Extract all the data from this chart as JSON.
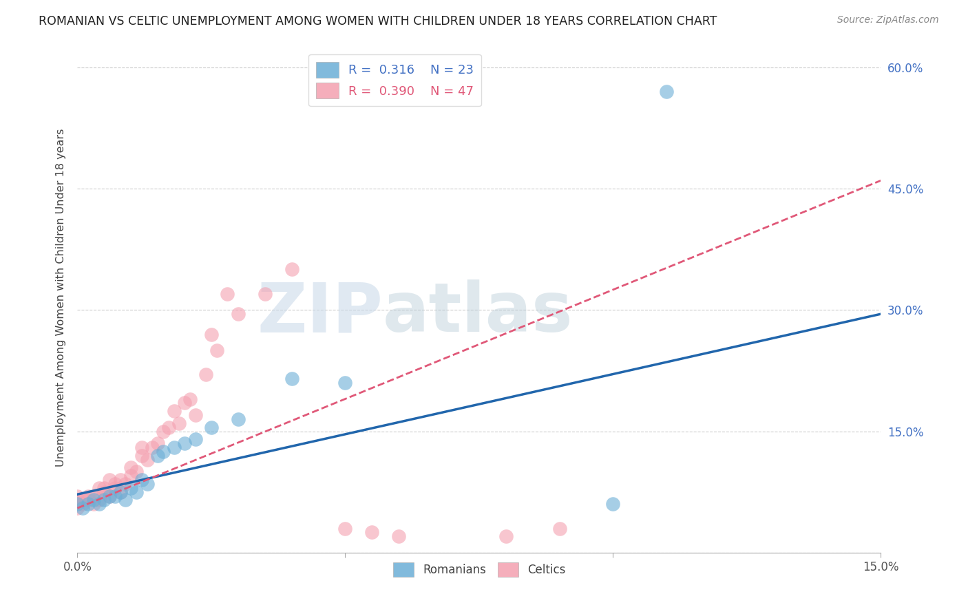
{
  "title": "ROMANIAN VS CELTIC UNEMPLOYMENT AMONG WOMEN WITH CHILDREN UNDER 18 YEARS CORRELATION CHART",
  "source": "Source: ZipAtlas.com",
  "ylabel": "Unemployment Among Women with Children Under 18 years",
  "xlim": [
    0.0,
    0.15
  ],
  "ylim": [
    0.0,
    0.63
  ],
  "yticks": [
    0.0,
    0.15,
    0.3,
    0.45,
    0.6
  ],
  "ytick_labels": [
    "",
    "15.0%",
    "30.0%",
    "45.0%",
    "60.0%"
  ],
  "xticks": [
    0.0,
    0.05,
    0.1,
    0.15
  ],
  "xtick_labels": [
    "0.0%",
    "",
    "",
    "15.0%"
  ],
  "legend_R_romanian": "0.316",
  "legend_N_romanian": "23",
  "legend_R_celtic": "0.390",
  "legend_N_celtic": "47",
  "romanian_color": "#6baed6",
  "celtic_color": "#f4a0b0",
  "trendline_romanian_color": "#2166ac",
  "trendline_celtic_color": "#e05878",
  "watermark_zip": "ZIP",
  "watermark_atlas": "atlas",
  "rom_trendline_x": [
    0.0,
    0.15
  ],
  "rom_trendline_y": [
    0.072,
    0.295
  ],
  "celt_trendline_x": [
    0.0,
    0.15
  ],
  "celt_trendline_y": [
    0.055,
    0.46
  ],
  "romanians_x": [
    0.0,
    0.001,
    0.002,
    0.003,
    0.004,
    0.005,
    0.006,
    0.007,
    0.008,
    0.009,
    0.01,
    0.011,
    0.012,
    0.013,
    0.015,
    0.016,
    0.018,
    0.02,
    0.022,
    0.025,
    0.03,
    0.04,
    0.05,
    0.1,
    0.11
  ],
  "romanians_y": [
    0.06,
    0.055,
    0.06,
    0.065,
    0.06,
    0.065,
    0.07,
    0.07,
    0.075,
    0.065,
    0.08,
    0.075,
    0.09,
    0.085,
    0.12,
    0.125,
    0.13,
    0.135,
    0.14,
    0.155,
    0.165,
    0.215,
    0.21,
    0.06,
    0.57
  ],
  "celtics_x": [
    0.0,
    0.0,
    0.0,
    0.001,
    0.001,
    0.002,
    0.002,
    0.003,
    0.003,
    0.004,
    0.004,
    0.005,
    0.005,
    0.006,
    0.006,
    0.007,
    0.007,
    0.008,
    0.008,
    0.009,
    0.01,
    0.01,
    0.011,
    0.012,
    0.012,
    0.013,
    0.014,
    0.015,
    0.016,
    0.017,
    0.018,
    0.019,
    0.02,
    0.021,
    0.022,
    0.024,
    0.025,
    0.026,
    0.028,
    0.03,
    0.035,
    0.04,
    0.05,
    0.055,
    0.06,
    0.08,
    0.09
  ],
  "celtics_y": [
    0.055,
    0.065,
    0.07,
    0.06,
    0.065,
    0.065,
    0.07,
    0.06,
    0.07,
    0.065,
    0.08,
    0.075,
    0.08,
    0.07,
    0.09,
    0.08,
    0.085,
    0.075,
    0.09,
    0.085,
    0.095,
    0.105,
    0.1,
    0.12,
    0.13,
    0.115,
    0.13,
    0.135,
    0.15,
    0.155,
    0.175,
    0.16,
    0.185,
    0.19,
    0.17,
    0.22,
    0.27,
    0.25,
    0.32,
    0.295,
    0.32,
    0.35,
    0.03,
    0.025,
    0.02,
    0.02,
    0.03
  ]
}
